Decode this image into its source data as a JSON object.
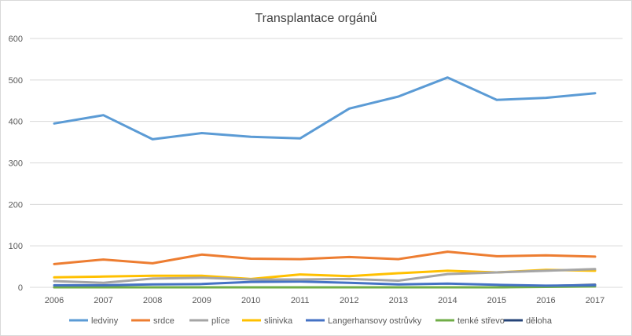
{
  "chart_data": {
    "type": "line",
    "title": "Transplantace orgánů",
    "xlabel": "",
    "ylabel": "",
    "ylim": [
      0,
      600
    ],
    "yticks": [
      0,
      100,
      200,
      300,
      400,
      500,
      600
    ],
    "grid": true,
    "legend_position": "bottom",
    "categories": [
      "2006",
      "2007",
      "2008",
      "2009",
      "2010",
      "2011",
      "2012",
      "2013",
      "2014",
      "2015",
      "2016",
      "2017"
    ],
    "series": [
      {
        "name": "ledviny",
        "color": "#5b9bd5",
        "values": [
          395,
          415,
          357,
          372,
          363,
          359,
          431,
          460,
          506,
          452,
          457,
          468
        ]
      },
      {
        "name": "srdce",
        "color": "#ed7d31",
        "values": [
          56,
          67,
          58,
          79,
          69,
          68,
          73,
          68,
          86,
          75,
          77,
          74
        ]
      },
      {
        "name": "plíce",
        "color": "#a5a5a5",
        "values": [
          15,
          11,
          21,
          23,
          19,
          19,
          20,
          16,
          32,
          36,
          40,
          44
        ]
      },
      {
        "name": "slinivka",
        "color": "#ffc000",
        "values": [
          24,
          26,
          28,
          28,
          20,
          31,
          27,
          34,
          40,
          36,
          42,
          40
        ]
      },
      {
        "name": "Langerhansovy ostrůvky",
        "color": "#4472c4",
        "values": [
          5,
          5,
          7,
          8,
          13,
          14,
          11,
          7,
          9,
          6,
          4,
          5
        ]
      },
      {
        "name": "tenké střevo",
        "color": "#70ad47",
        "values": [
          0,
          0,
          0,
          0,
          0,
          0,
          0,
          0,
          0,
          0,
          1,
          2
        ]
      },
      {
        "name": "děloha",
        "color": "#264478",
        "values": [
          0,
          0,
          0,
          0,
          0,
          0,
          0,
          0,
          0,
          0,
          3,
          6
        ]
      }
    ]
  }
}
